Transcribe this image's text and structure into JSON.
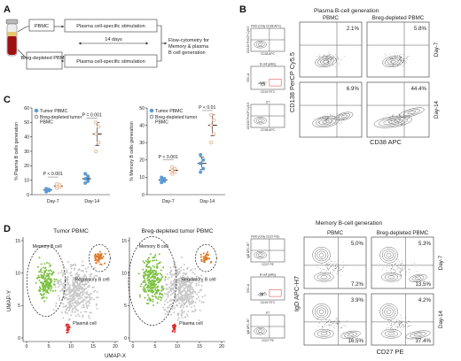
{
  "panels": {
    "A": {
      "label": "A",
      "pbmc": "PBMC",
      "breg_depleted": "Breg-depleted PBMC",
      "stim1": "Plasma cell-specific stimulation",
      "stim2": "Plasma cell-specific stimulation",
      "duration": "14 days",
      "outcome": "Flow-cytometry for Memory & plasma B cell generation"
    },
    "B": {
      "label": "B",
      "title_plasma": "Plasma B-cell generation",
      "title_memory": "Memory B-cell generation",
      "col_pbmc": "PBMC",
      "col_breg": "Breg-depleted PBMC",
      "row_day7": "Day-7",
      "row_day14": "Day-14",
      "plasma_ylabel": "CD138 PerCP Cy5.5",
      "plasma_xlabel": "CD38 APC",
      "memory_ylabel": "IgD APC-H7",
      "memory_xlabel": "CD27 PE",
      "gating_plasma": [
        {
          "title": "FMO (Only CD38 APC)",
          "ylabel": "CD138 PerCP Cy5.5",
          "xlabel": "CD38 APC"
        },
        {
          "title": "",
          "ylabel": "SSC-A",
          "xlabel": "CD19 FITC",
          "gate": "B-cell gating"
        },
        {
          "title": "",
          "ylabel": "CD138 PerCP Cy5.5",
          "xlabel": "CD38 APC",
          "tag": "UT"
        }
      ],
      "gating_memory": [
        {
          "title": "FMO (Only CD27-PE)",
          "ylabel": "IgD APC-H7",
          "xlabel": "CD27 PE"
        },
        {
          "title": "",
          "ylabel": "SSC-A",
          "xlabel": "CD19 FITC",
          "gate": "B-cell gating"
        },
        {
          "title": "",
          "ylabel": "IgD APC-H7",
          "xlabel": "CD27 PE",
          "tag": "UT"
        }
      ],
      "plasma_pct": [
        [
          "2.1%",
          "5.8%"
        ],
        [
          "6.9%",
          "44.4%"
        ]
      ],
      "memory_pct": [
        [
          [
            "5.0%",
            "7.2%"
          ],
          [
            "5.3%",
            "13.5%"
          ]
        ],
        [
          [
            "3.9%",
            "16.5%"
          ],
          [
            "4.2%",
            "37.4%"
          ]
        ]
      ]
    },
    "D": {
      "label": "D",
      "title_left": "Tumor PBMC",
      "title_right": "Breg-depleted tumor PBMC",
      "memory": "Memory B cell",
      "regulatory": "Regulatory B cell",
      "plasma": "Plasma cell",
      "xlabel": "UMAP-X",
      "ylabel": "UMAP-Y"
    }
  },
  "colors": {
    "tumor": "#5b9bd5",
    "breg": "#e8a67a",
    "memory_cluster": "#7dc142",
    "regulatory_cluster": "#e07a2a",
    "plasma_cluster": "#e02a2a",
    "background_cells": "#c8c8c8"
  },
  "chart_data": [
    {
      "type": "scatter",
      "panel": "C-left",
      "title": "",
      "ylabel": "% Plasma B cells generation",
      "xlabel": "",
      "categories": [
        "Day-7",
        "Day-14"
      ],
      "ylim": [
        0,
        60
      ],
      "yticks": [
        0,
        10,
        20,
        30,
        40,
        50,
        60
      ],
      "legend": {
        "placement": "top-left",
        "entries": [
          "Tumor PBMC",
          "Breg-depleted tumor PBMC"
        ]
      },
      "series": [
        {
          "name": "Tumor PBMC",
          "category": "Day-7",
          "values": [
            2,
            2.8,
            3.2,
            3.6,
            4.2
          ],
          "mean": 3.2,
          "error": 0.9
        },
        {
          "name": "Breg-depleted tumor PBMC",
          "category": "Day-7",
          "values": [
            4.5,
            5.2,
            6.0,
            6.6,
            7.4
          ],
          "mean": 6.0,
          "error": 1.2
        },
        {
          "name": "Tumor PBMC",
          "category": "Day-14",
          "values": [
            8,
            9.5,
            11,
            12.5,
            14.5
          ],
          "mean": 11,
          "error": 2.6
        },
        {
          "name": "Breg-depleted tumor PBMC",
          "category": "Day-14",
          "values": [
            30,
            36,
            42,
            47,
            50
          ],
          "mean": 42,
          "error": 8
        }
      ],
      "annotations": [
        "P < 0.001",
        "P = 0.001"
      ]
    },
    {
      "type": "scatter",
      "panel": "C-right",
      "title": "",
      "ylabel": "% Memory B cells generation",
      "xlabel": "",
      "categories": [
        "Day-7",
        "Day-14"
      ],
      "ylim": [
        0,
        50
      ],
      "yticks": [
        0,
        10,
        20,
        30,
        40,
        50
      ],
      "legend": {
        "placement": "top-left",
        "entries": [
          "Tumor PBMC",
          "Breg-depleted tumor PBMC"
        ]
      },
      "series": [
        {
          "name": "Tumor PBMC",
          "category": "Day-7",
          "values": [
            7,
            7.8,
            8.5,
            9.2,
            10
          ],
          "mean": 8.5,
          "error": 1.2
        },
        {
          "name": "Breg-depleted tumor PBMC",
          "category": "Day-7",
          "values": [
            12,
            13,
            14,
            15,
            16
          ],
          "mean": 14,
          "error": 1.6
        },
        {
          "name": "Tumor PBMC",
          "category": "Day-14",
          "values": [
            13,
            15,
            18,
            20,
            23
          ],
          "mean": 18,
          "error": 3.6
        },
        {
          "name": "Breg-depleted tumor PBMC",
          "category": "Day-14",
          "values": [
            30,
            35,
            40,
            43,
            46
          ],
          "mean": 40,
          "error": 6
        }
      ],
      "annotations": [
        "P < 0.001",
        "P < 0.01"
      ]
    }
  ]
}
